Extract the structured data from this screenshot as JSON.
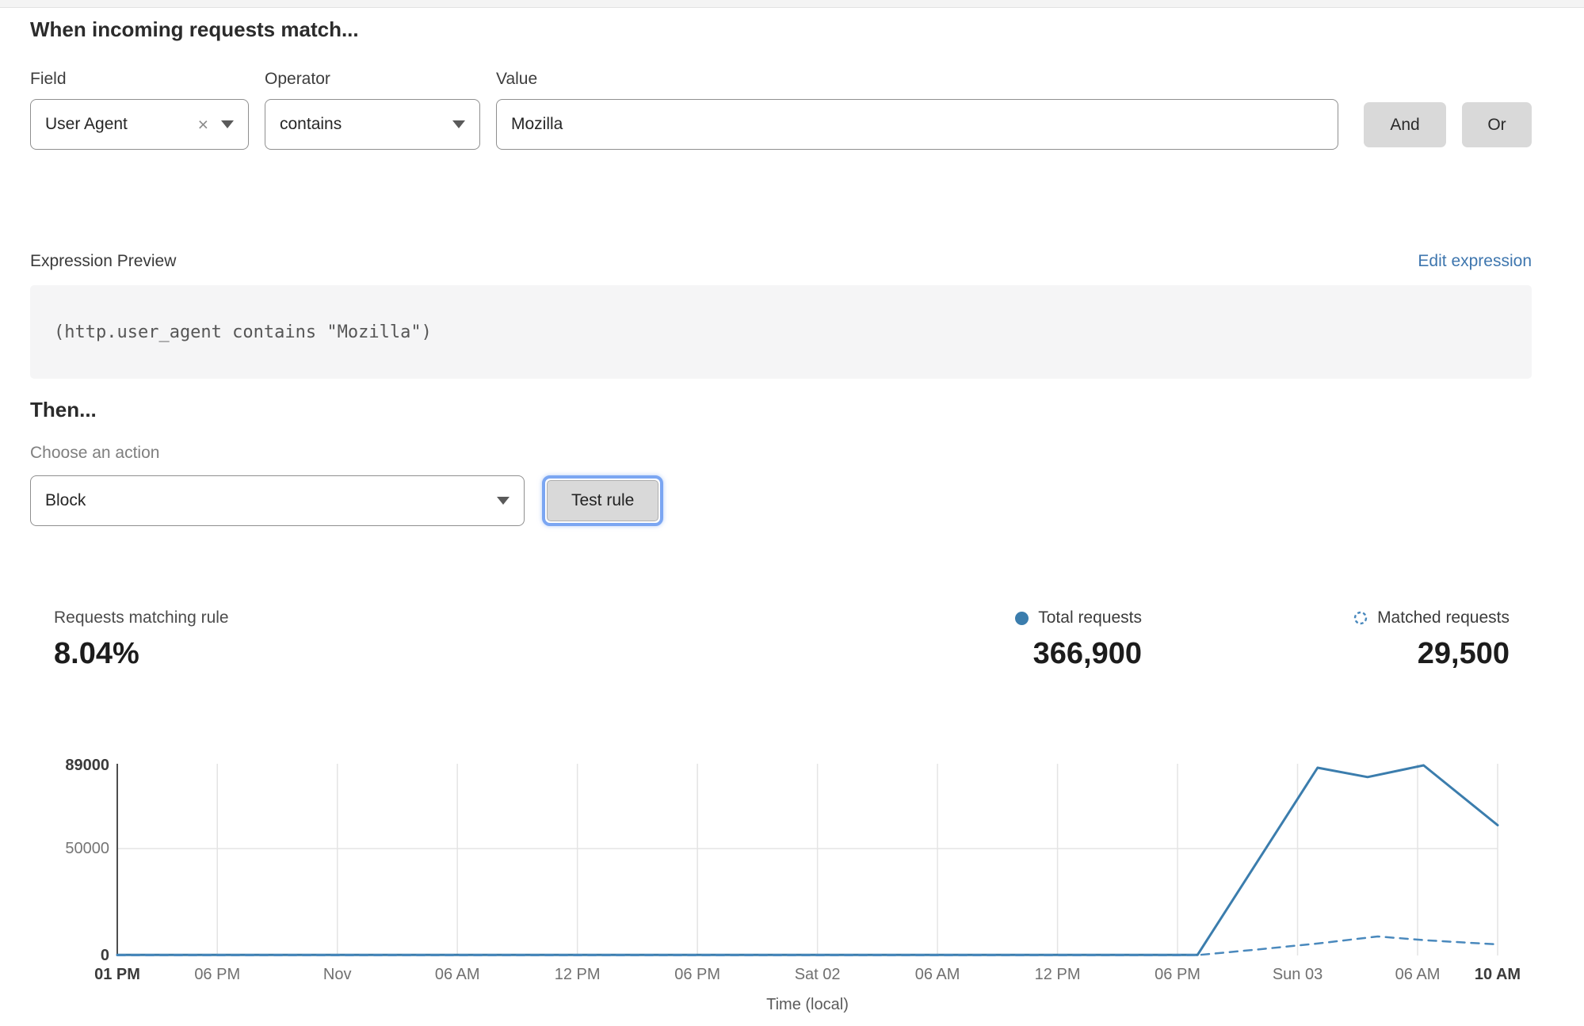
{
  "header": {
    "title": "When incoming requests match..."
  },
  "rule_builder": {
    "field": {
      "label": "Field",
      "value": "User Agent"
    },
    "operator": {
      "label": "Operator",
      "value": "contains"
    },
    "value": {
      "label": "Value",
      "value": "Mozilla"
    },
    "and_label": "And",
    "or_label": "Or"
  },
  "icons": {
    "clear_field": "×"
  },
  "expression": {
    "label": "Expression Preview",
    "edit_link": "Edit expression",
    "code": "(http.user_agent contains \"Mozilla\")"
  },
  "then": {
    "title": "Then...",
    "action_label": "Choose an action",
    "action_value": "Block",
    "test_button": "Test rule"
  },
  "stats": {
    "matching": {
      "label": "Requests matching rule",
      "value": "8.04%"
    },
    "total": {
      "label": "Total requests",
      "value": "366,900"
    },
    "matched": {
      "label": "Matched requests",
      "value": "29,500"
    }
  },
  "colors": {
    "accent_blue": "#3b7dad",
    "dashed_blue": "#4a89bd",
    "link_blue": "#3e76ae",
    "focus_ring": "#7ba6f2",
    "grid_gray": "#e4e4e4",
    "axis_gray": "#4d4d4d"
  },
  "chart_data": {
    "type": "line",
    "title": "",
    "xlabel": "Time (local)",
    "ylabel": "",
    "ylim": [
      0,
      89000
    ],
    "x_total_hours": 69,
    "grid": "vertical lines at each x tick, horizontal line at 50000",
    "legend_position": "above chart, top right",
    "yticks": [
      {
        "value": 0,
        "label": "0",
        "bold": true
      },
      {
        "value": 50000,
        "label": "50000",
        "bold": false
      },
      {
        "value": 89000,
        "label": "89000",
        "bold": true
      }
    ],
    "xticks": [
      {
        "hour": 0,
        "label": "01 PM",
        "bold": true
      },
      {
        "hour": 5,
        "label": "06 PM",
        "bold": false
      },
      {
        "hour": 11,
        "label": "Nov",
        "bold": false
      },
      {
        "hour": 17,
        "label": "06 AM",
        "bold": false
      },
      {
        "hour": 23,
        "label": "12 PM",
        "bold": false
      },
      {
        "hour": 29,
        "label": "06 PM",
        "bold": false
      },
      {
        "hour": 35,
        "label": "Sat 02",
        "bold": false
      },
      {
        "hour": 41,
        "label": "06 AM",
        "bold": false
      },
      {
        "hour": 47,
        "label": "12 PM",
        "bold": false
      },
      {
        "hour": 53,
        "label": "06 PM",
        "bold": false
      },
      {
        "hour": 59,
        "label": "Sun 03",
        "bold": false
      },
      {
        "hour": 65,
        "label": "06 AM",
        "bold": false
      },
      {
        "hour": 69,
        "label": "10 AM",
        "bold": true
      }
    ],
    "series": [
      {
        "name": "Total requests",
        "style": "solid",
        "color": "#3b7dad",
        "points": [
          [
            0,
            250
          ],
          [
            5,
            250
          ],
          [
            11,
            250
          ],
          [
            17,
            250
          ],
          [
            23,
            250
          ],
          [
            29,
            250
          ],
          [
            35,
            250
          ],
          [
            41,
            250
          ],
          [
            47,
            250
          ],
          [
            53,
            250
          ],
          [
            54,
            300
          ],
          [
            60,
            87900
          ],
          [
            62.5,
            83500
          ],
          [
            65.3,
            89000
          ],
          [
            69,
            61000
          ]
        ]
      },
      {
        "name": "Matched requests",
        "style": "dashed",
        "color": "#4a89bd",
        "points": [
          [
            0,
            120
          ],
          [
            5,
            120
          ],
          [
            11,
            120
          ],
          [
            17,
            120
          ],
          [
            23,
            120
          ],
          [
            29,
            120
          ],
          [
            35,
            120
          ],
          [
            41,
            120
          ],
          [
            47,
            120
          ],
          [
            53,
            120
          ],
          [
            54,
            200
          ],
          [
            57,
            2800
          ],
          [
            60,
            5600
          ],
          [
            63,
            8900
          ],
          [
            65.5,
            7100
          ],
          [
            69,
            5200
          ]
        ]
      }
    ]
  }
}
